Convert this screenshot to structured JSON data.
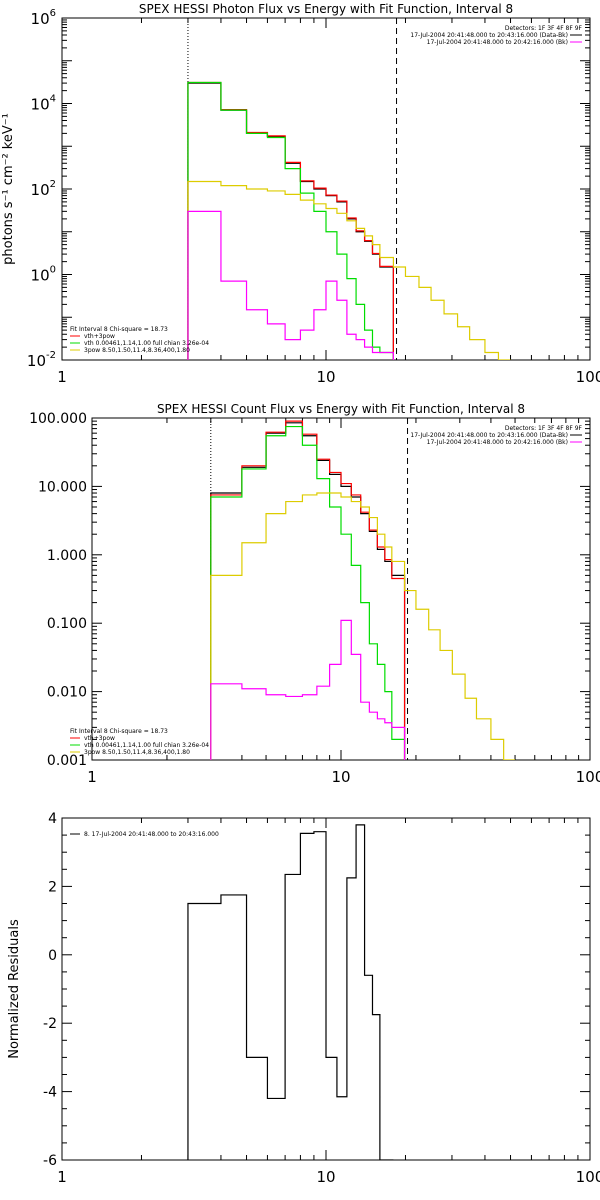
{
  "chart_data": [
    {
      "type": "line",
      "title": "SPEX HESSI Photon Flux vs Energy with Fit Function, Interval 8",
      "ylabel": "photons s⁻¹ cm⁻² keV⁻¹",
      "xlabel": "",
      "xscale": "log",
      "yscale": "log",
      "xlim": [
        1,
        100
      ],
      "ylim": [
        0.01,
        1000000
      ],
      "x_ticks": [
        1,
        10,
        100
      ],
      "x_tick_labels": [
        "1",
        "10",
        "100"
      ],
      "y_ticks": [
        0.01,
        1,
        100,
        10000,
        1000000
      ],
      "y_tick_labels": [
        [
          "10",
          "-2"
        ],
        [
          "10",
          "0"
        ],
        [
          "10",
          "2"
        ],
        [
          "10",
          "4"
        ],
        [
          "10",
          "6"
        ]
      ],
      "legend_topright": [
        "Detectors: 1F 3F 4F 8F 9F",
        "17-Jul-2004 20:41:48.000 to 20:43:16.000 (Data-Bk)",
        "17-Jul-2004 20:41:48.000 to 20:42:16.000 (Bk)"
      ],
      "legend_bottomleft": [
        "Fit Interval 8   Chi-square = 18.73",
        "vth+3pow",
        "vth 0.00461,1.14,1.00  full chian 3.26e-04",
        "3pow 8.50,1.50,11.4,8.36,400,1.80"
      ],
      "vlines": [
        {
          "x": 3.0,
          "style": "dotted"
        },
        {
          "x": 18.5,
          "style": "dashed"
        }
      ],
      "edges": [
        3,
        4,
        5,
        6,
        7,
        8,
        9,
        10,
        11,
        12,
        13,
        14,
        15,
        16,
        18,
        20,
        22.5,
        25,
        28,
        31.5,
        35,
        40,
        45,
        50,
        56,
        63
      ],
      "series": [
        {
          "name": "Data-Bk",
          "color": "#000000",
          "start": 0,
          "values": [
            30000,
            7000,
            2000,
            1700,
            400,
            150,
            100,
            70,
            50,
            20,
            10,
            6,
            3,
            1.5
          ]
        },
        {
          "name": "vth+3pow",
          "color": "#ff0000",
          "start": 0,
          "values": [
            31000,
            7200,
            2100,
            1750,
            420,
            155,
            105,
            72,
            52,
            21,
            10.5,
            6.2,
            3.1,
            1.55
          ]
        },
        {
          "name": "vth",
          "color": "#00dd00",
          "start": 0,
          "values": [
            31000,
            7000,
            2000,
            1600,
            300,
            80,
            30,
            10,
            3,
            0.8,
            0.2,
            0.05,
            0.02,
            0.015
          ]
        },
        {
          "name": "3pow",
          "color": "#ddcc00",
          "start": 0,
          "values": [
            150,
            120,
            100,
            90,
            75,
            55,
            45,
            35,
            27,
            18,
            12,
            8,
            5,
            2.5,
            1.5,
            0.9,
            0.5,
            0.25,
            0.12,
            0.06,
            0.03,
            0.015,
            0.01
          ]
        },
        {
          "name": "Bk",
          "color": "#ff00ff",
          "start": 0,
          "values": [
            30,
            0.7,
            0.15,
            0.07,
            0.03,
            0.05,
            0.15,
            0.7,
            0.25,
            0.04,
            0.03,
            0.02,
            0.015,
            0.015
          ]
        }
      ]
    },
    {
      "type": "line",
      "title": "SPEX HESSI Count Flux vs Energy with Fit Function, Interval 8",
      "xlabel": "",
      "ylabel": "",
      "xscale": "log",
      "yscale": "log",
      "xlim": [
        1,
        100
      ],
      "ylim": [
        0.001,
        100
      ],
      "x_ticks": [
        1,
        10,
        100
      ],
      "x_tick_labels": [
        "1",
        "10",
        "100"
      ],
      "y_ticks": [
        0.001,
        0.01,
        0.1,
        1,
        10,
        100
      ],
      "y_tick_labels": [
        "0.001",
        "0.010",
        "0.100",
        "1.000",
        "10.000",
        "100.000"
      ],
      "legend_topright": [
        "Detectors: 1F 3F 4F 8F 9F",
        "17-Jul-2004 20:41:48.000 to 20:43:16.000 (Data-Bk)",
        "17-Jul-2004 20:41:48.000 to 20:42:16.000 (Bk)"
      ],
      "legend_bottomleft": [
        "Fit Interval 8   Chi-square = 18.73",
        "vth+3pow",
        "vth 0.00461,1.14,1.00  full chian 3.26e-04",
        "3pow 8.50,1.50,11.4,8.36,400,1.80"
      ],
      "vlines": [
        {
          "x": 3.0,
          "style": "dotted"
        },
        {
          "x": 18.5,
          "style": "dashed"
        }
      ],
      "edges": [
        3,
        4,
        5,
        6,
        7,
        8,
        9,
        10,
        11,
        12,
        13,
        14,
        15,
        16,
        18,
        20,
        22.5,
        25,
        28,
        31.5,
        35,
        40,
        45,
        50
      ],
      "series": [
        {
          "name": "Data-Bk",
          "color": "#000000",
          "start": 0,
          "values": [
            8,
            19,
            60,
            85,
            55,
            24,
            15,
            10,
            7,
            4,
            2.2,
            1.2,
            0.8,
            0.5
          ]
        },
        {
          "name": "vth+3pow",
          "color": "#ff0000",
          "start": 0,
          "values": [
            7.5,
            20,
            62,
            90,
            58,
            25,
            16,
            11,
            7.5,
            4.2,
            2.3,
            1.3,
            0.85,
            0.45
          ]
        },
        {
          "name": "vth",
          "color": "#00dd00",
          "start": 0,
          "values": [
            7,
            18,
            55,
            75,
            40,
            13,
            5,
            2,
            0.7,
            0.2,
            0.05,
            0.025,
            0.01,
            0.002
          ]
        },
        {
          "name": "3pow",
          "color": "#ddcc00",
          "start": 0,
          "values": [
            0.5,
            1.5,
            4,
            6,
            7.5,
            8,
            8,
            7,
            6,
            5,
            3.5,
            2,
            1.3,
            0.8,
            0.3,
            0.16,
            0.08,
            0.04,
            0.018,
            0.008,
            0.004,
            0.002,
            0.001
          ]
        },
        {
          "name": "Bk",
          "color": "#ff00ff",
          "start": 0,
          "values": [
            0.013,
            0.011,
            0.009,
            0.0085,
            0.009,
            0.012,
            0.025,
            0.11,
            0.035,
            0.007,
            0.005,
            0.004,
            0.0035,
            0.003
          ]
        }
      ]
    },
    {
      "type": "line",
      "title": "",
      "ylabel": "Normalized Residuals",
      "xlabel": "",
      "xscale": "log",
      "yscale": "linear",
      "xlim": [
        1,
        100
      ],
      "ylim": [
        -6,
        4
      ],
      "x_ticks": [
        1,
        10,
        100
      ],
      "x_tick_labels": [
        "1",
        "10",
        "100"
      ],
      "y_ticks": [
        -6,
        -4,
        -2,
        0,
        2,
        4
      ],
      "y_tick_labels": [
        "-6",
        "-4",
        "-2",
        "0",
        "2",
        "4"
      ],
      "legend_topleft": [
        "8. 17-Jul-2004 20:41:48.000 to 20:43:16.000"
      ],
      "edges": [
        3,
        4,
        5,
        6,
        7,
        8,
        9,
        10,
        11,
        12,
        13,
        14,
        15,
        16,
        18
      ],
      "series": [
        {
          "name": "8. 17-Jul-2004 20:41:48.000 to 20:43:16.000",
          "color": "#000000",
          "start": 0,
          "values": [
            1.5,
            1.75,
            -3.0,
            -4.2,
            2.35,
            3.55,
            3.6,
            -3.0,
            -4.15,
            2.25,
            3.8,
            -0.6,
            -1.75,
            -6
          ]
        }
      ]
    }
  ]
}
